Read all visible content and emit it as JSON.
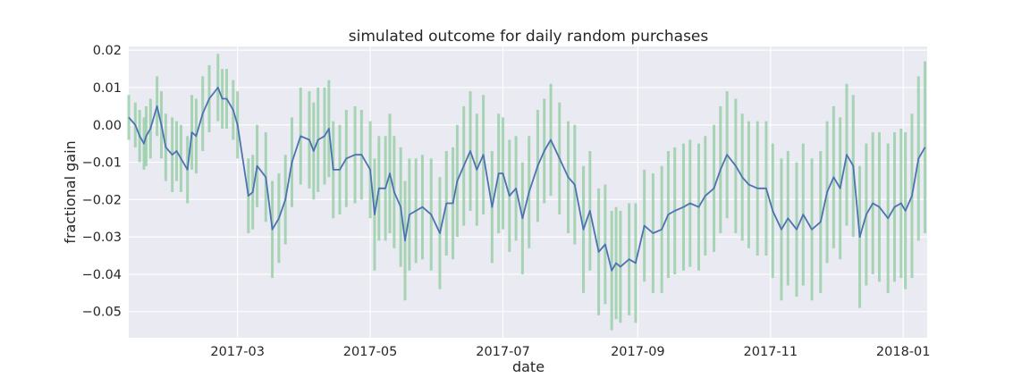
{
  "chart_data": {
    "type": "line",
    "title": "simulated outcome for daily random purchases",
    "xlabel": "date",
    "ylabel": "fractional gain",
    "xlim": [
      "2017-01-10",
      "2018-01-12"
    ],
    "ylim": [
      -0.057,
      0.021
    ],
    "x_ticks": [
      "2017-03-01",
      "2017-05-01",
      "2017-07-01",
      "2017-09-01",
      "2017-11-01",
      "2018-01-01"
    ],
    "x_tick_labels": [
      "2017-03",
      "2017-05",
      "2017-07",
      "2017-09",
      "2017-11",
      "2018-01"
    ],
    "y_ticks": [
      0.02,
      0.01,
      0.0,
      -0.01,
      -0.02,
      -0.03,
      -0.04,
      -0.05
    ],
    "y_tick_labels": [
      "0.02",
      "0.01",
      "0.00",
      "−0.01",
      "−0.02",
      "−0.03",
      "−0.04",
      "−0.05"
    ],
    "grid": true,
    "colors": {
      "background": "#eaeaf2",
      "line": "#4c72b0",
      "bars": "#8fcb9f"
    },
    "series": [
      {
        "type": "line",
        "x": [
          "2017-01-10",
          "2017-01-13",
          "2017-01-15",
          "2017-01-17",
          "2017-01-18",
          "2017-01-20",
          "2017-01-23",
          "2017-01-25",
          "2017-01-27",
          "2017-01-30",
          "2017-02-01",
          "2017-02-03",
          "2017-02-06",
          "2017-02-08",
          "2017-02-10",
          "2017-02-13",
          "2017-02-16",
          "2017-02-20",
          "2017-02-22",
          "2017-02-24",
          "2017-02-27",
          "2017-03-01",
          "2017-03-06",
          "2017-03-08",
          "2017-03-10",
          "2017-03-14",
          "2017-03-17",
          "2017-03-20",
          "2017-03-23",
          "2017-03-26",
          "2017-03-30",
          "2017-04-03",
          "2017-04-05",
          "2017-04-07",
          "2017-04-10",
          "2017-04-12",
          "2017-04-14",
          "2017-04-17",
          "2017-04-20",
          "2017-04-24",
          "2017-04-27",
          "2017-05-01",
          "2017-05-03",
          "2017-05-05",
          "2017-05-08",
          "2017-05-10",
          "2017-05-12",
          "2017-05-15",
          "2017-05-17",
          "2017-05-19",
          "2017-05-22",
          "2017-05-25",
          "2017-05-29",
          "2017-06-02",
          "2017-06-05",
          "2017-06-08",
          "2017-06-10",
          "2017-06-13",
          "2017-06-16",
          "2017-06-19",
          "2017-06-22",
          "2017-06-26",
          "2017-06-29",
          "2017-07-01",
          "2017-07-04",
          "2017-07-07",
          "2017-07-10",
          "2017-07-13",
          "2017-07-17",
          "2017-07-20",
          "2017-07-23",
          "2017-07-27",
          "2017-07-31",
          "2017-08-03",
          "2017-08-07",
          "2017-08-10",
          "2017-08-14",
          "2017-08-17",
          "2017-08-20",
          "2017-08-22",
          "2017-08-24",
          "2017-08-28",
          "2017-08-31",
          "2017-09-04",
          "2017-09-08",
          "2017-09-12",
          "2017-09-15",
          "2017-09-18",
          "2017-09-22",
          "2017-09-25",
          "2017-09-29",
          "2017-10-02",
          "2017-10-06",
          "2017-10-09",
          "2017-10-12",
          "2017-10-16",
          "2017-10-19",
          "2017-10-22",
          "2017-10-26",
          "2017-10-30",
          "2017-11-02",
          "2017-11-06",
          "2017-11-09",
          "2017-11-13",
          "2017-11-16",
          "2017-11-20",
          "2017-11-24",
          "2017-11-27",
          "2017-11-30",
          "2017-12-03",
          "2017-12-06",
          "2017-12-09",
          "2017-12-12",
          "2017-12-15",
          "2017-12-18",
          "2017-12-21",
          "2017-12-25",
          "2017-12-28",
          "2017-12-31",
          "2018-01-02",
          "2018-01-05",
          "2018-01-08",
          "2018-01-11"
        ],
        "y": [
          0.002,
          0.0,
          -0.003,
          -0.005,
          -0.003,
          -0.001,
          0.005,
          0.0,
          -0.006,
          -0.008,
          -0.007,
          -0.009,
          -0.012,
          -0.002,
          -0.003,
          0.003,
          0.007,
          0.01,
          0.007,
          0.007,
          0.004,
          0.0,
          -0.019,
          -0.018,
          -0.011,
          -0.014,
          -0.028,
          -0.025,
          -0.02,
          -0.01,
          -0.003,
          -0.004,
          -0.007,
          -0.004,
          -0.003,
          -0.001,
          -0.012,
          -0.012,
          -0.009,
          -0.008,
          -0.008,
          -0.012,
          -0.024,
          -0.017,
          -0.017,
          -0.013,
          -0.018,
          -0.022,
          -0.031,
          -0.024,
          -0.023,
          -0.022,
          -0.024,
          -0.029,
          -0.021,
          -0.021,
          -0.015,
          -0.011,
          -0.007,
          -0.012,
          -0.008,
          -0.022,
          -0.013,
          -0.013,
          -0.019,
          -0.017,
          -0.025,
          -0.018,
          -0.011,
          -0.007,
          -0.004,
          -0.009,
          -0.014,
          -0.016,
          -0.028,
          -0.023,
          -0.034,
          -0.032,
          -0.039,
          -0.037,
          -0.038,
          -0.036,
          -0.037,
          -0.027,
          -0.029,
          -0.028,
          -0.024,
          -0.023,
          -0.022,
          -0.021,
          -0.022,
          -0.019,
          -0.017,
          -0.012,
          -0.008,
          -0.011,
          -0.014,
          -0.016,
          -0.017,
          -0.017,
          -0.023,
          -0.028,
          -0.025,
          -0.028,
          -0.024,
          -0.028,
          -0.026,
          -0.018,
          -0.014,
          -0.017,
          -0.008,
          -0.011,
          -0.03,
          -0.024,
          -0.021,
          -0.022,
          -0.025,
          -0.022,
          -0.021,
          -0.023,
          -0.019,
          -0.009,
          -0.006
        ],
        "errors": [
          0.006,
          0.006,
          0.007,
          0.007,
          0.008,
          0.008,
          0.008,
          0.009,
          0.009,
          0.01,
          0.008,
          0.009,
          0.009,
          0.01,
          0.01,
          0.01,
          0.009,
          0.009,
          0.008,
          0.008,
          0.008,
          0.009,
          0.01,
          0.01,
          0.011,
          0.012,
          0.013,
          0.012,
          0.012,
          0.012,
          0.013,
          0.013,
          0.013,
          0.014,
          0.013,
          0.013,
          0.013,
          0.012,
          0.013,
          0.013,
          0.012,
          0.013,
          0.015,
          0.014,
          0.014,
          0.016,
          0.015,
          0.016,
          0.016,
          0.015,
          0.014,
          0.014,
          0.015,
          0.015,
          0.014,
          0.015,
          0.015,
          0.016,
          0.016,
          0.015,
          0.016,
          0.015,
          0.016,
          0.015,
          0.015,
          0.014,
          0.015,
          0.015,
          0.015,
          0.014,
          0.015,
          0.015,
          0.015,
          0.016,
          0.017,
          0.016,
          0.017,
          0.016,
          0.016,
          0.015,
          0.015,
          0.015,
          0.016,
          0.015,
          0.016,
          0.017,
          0.017,
          0.017,
          0.017,
          0.017,
          0.017,
          0.016,
          0.017,
          0.017,
          0.017,
          0.018,
          0.017,
          0.017,
          0.018,
          0.018,
          0.018,
          0.019,
          0.018,
          0.018,
          0.019,
          0.019,
          0.019,
          0.019,
          0.019,
          0.019,
          0.019,
          0.019,
          0.019,
          0.019,
          0.019,
          0.02,
          0.02,
          0.02,
          0.02,
          0.021,
          0.022,
          0.022,
          0.023
        ]
      }
    ]
  }
}
